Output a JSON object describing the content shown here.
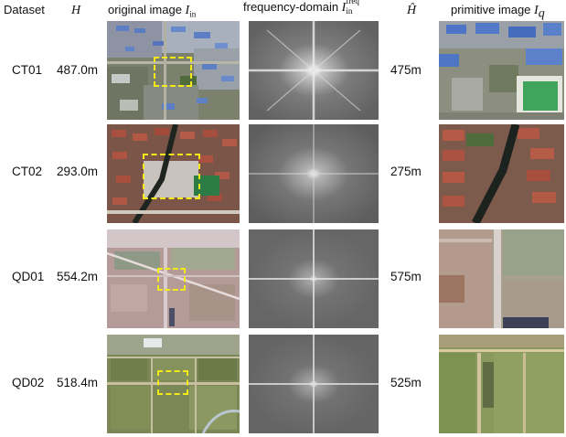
{
  "header": {
    "dataset": "Dataset",
    "h": "H",
    "original_prefix": "original image ",
    "original_sym": "I",
    "original_sub": "in",
    "freq_prefix": "frequency-domain ",
    "freq_sym": "I",
    "freq_sub": "in",
    "freq_sup": "freq",
    "h_hat": "Ĥ",
    "primitive_prefix": "primitive image ",
    "primitive_sym": "I",
    "primitive_sub": "q"
  },
  "rows": [
    {
      "dataset": "CT01",
      "h": "487.0m",
      "h_hat": "475m",
      "scene": "urban-blue-roofs"
    },
    {
      "dataset": "CT02",
      "h": "293.0m",
      "h_hat": "275m",
      "scene": "urban-red-roofs"
    },
    {
      "dataset": "QD01",
      "h": "554.2m",
      "h_hat": "575m",
      "scene": "farmland-pink"
    },
    {
      "dataset": "QD02",
      "h": "518.4m",
      "h_hat": "525m",
      "scene": "farmland-green"
    }
  ]
}
